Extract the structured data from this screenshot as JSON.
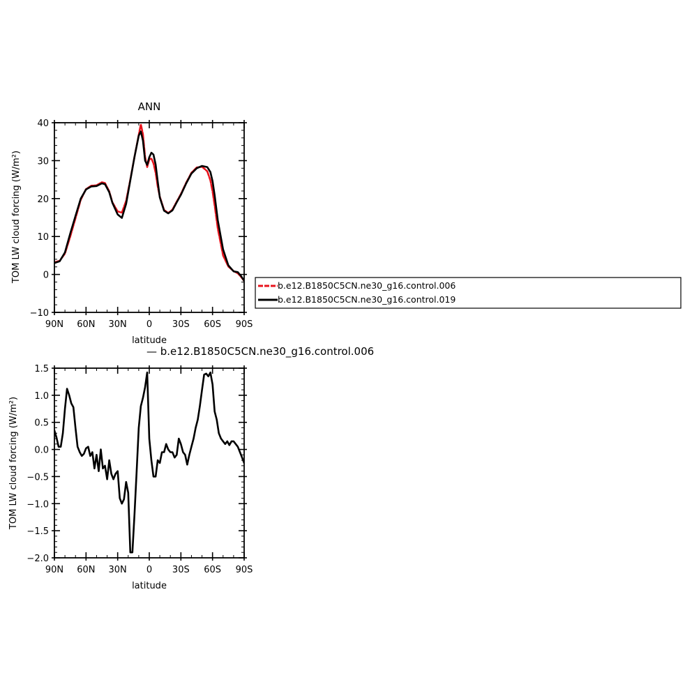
{
  "chart_data": [
    {
      "type": "line",
      "title": "ANN",
      "xlabel": "latitude",
      "ylabel": "TOM LW cloud forcing (W/m²)",
      "xlim": [
        90,
        -90
      ],
      "ylim": [
        -10,
        40
      ],
      "x_ticks": [
        {
          "value": 90,
          "label": "90N"
        },
        {
          "value": 60,
          "label": "60N"
        },
        {
          "value": 30,
          "label": "30N"
        },
        {
          "value": 0,
          "label": "0"
        },
        {
          "value": -30,
          "label": "30S"
        },
        {
          "value": -60,
          "label": "60S"
        },
        {
          "value": -90,
          "label": "90S"
        }
      ],
      "y_ticks": [
        {
          "value": 40,
          "label": "40"
        },
        {
          "value": 30,
          "label": "30"
        },
        {
          "value": 20,
          "label": "20"
        },
        {
          "value": 10,
          "label": "10"
        },
        {
          "value": 0,
          "label": "0"
        },
        {
          "value": -10,
          "label": "−10"
        }
      ],
      "legend_position": "right",
      "series": [
        {
          "name": "b.e12.B1850C5CN.ne30_g16.control.006",
          "color": "#e8141c",
          "style": "dashed",
          "x": [
            90,
            85,
            80,
            75,
            70,
            65,
            60,
            55,
            50,
            45,
            42,
            38,
            35,
            30,
            26,
            22,
            18,
            14,
            10,
            8,
            6,
            4,
            2,
            0,
            -2,
            -4,
            -6,
            -8,
            -10,
            -14,
            -18,
            -22,
            -26,
            -30,
            -35,
            -40,
            -45,
            -50,
            -55,
            -58,
            -60,
            -62,
            -65,
            -70,
            -75,
            -80,
            -84,
            -87,
            -90
          ],
          "y": [
            3.2,
            3.6,
            5.5,
            10.0,
            14.8,
            19.7,
            22.5,
            23.4,
            23.5,
            24.3,
            24.1,
            21.9,
            19.0,
            16.6,
            16.3,
            19.4,
            25.0,
            31.0,
            36.8,
            39.6,
            37.0,
            31.0,
            28.3,
            30.3,
            30.6,
            29.3,
            26.8,
            23.2,
            20.5,
            17.0,
            16.2,
            17.1,
            19.2,
            21.2,
            24.2,
            26.8,
            28.2,
            28.4,
            27.2,
            24.8,
            21.9,
            18.2,
            12.1,
            5.0,
            2.1,
            0.9,
            0.3,
            -0.6,
            -1.7
          ]
        },
        {
          "name": "b.e12.B1850C5CN.ne30_g16.control.019",
          "color": "#000000",
          "style": "solid",
          "x": [
            90,
            85,
            80,
            75,
            70,
            65,
            60,
            55,
            50,
            45,
            42,
            38,
            35,
            30,
            26,
            22,
            18,
            14,
            10,
            8,
            6,
            4,
            2,
            0,
            -2,
            -4,
            -6,
            -8,
            -10,
            -14,
            -18,
            -22,
            -26,
            -30,
            -35,
            -40,
            -45,
            -50,
            -55,
            -58,
            -60,
            -62,
            -65,
            -70,
            -75,
            -80,
            -84,
            -87,
            -90
          ],
          "y": [
            3.0,
            3.5,
            5.8,
            10.8,
            15.4,
            20.0,
            22.4,
            23.2,
            23.3,
            24.0,
            23.8,
            21.7,
            18.9,
            15.8,
            14.9,
            18.6,
            24.8,
            31.0,
            36.6,
            37.7,
            35.3,
            30.0,
            28.9,
            30.9,
            32.1,
            31.6,
            29.0,
            24.5,
            20.3,
            16.8,
            16.1,
            16.9,
            19.0,
            21.0,
            24.0,
            26.6,
            28.0,
            28.6,
            28.3,
            27.0,
            24.6,
            20.9,
            14.3,
            6.6,
            2.4,
            0.8,
            0.6,
            -0.4,
            -1.7
          ]
        }
      ]
    },
    {
      "type": "line",
      "title": "— b.e12.B1850C5CN.ne30_g16.control.006",
      "xlabel": "latitude",
      "ylabel": "TOM LW cloud forcing (W/m²)",
      "xlim": [
        90,
        -90
      ],
      "ylim": [
        -2.0,
        1.5
      ],
      "x_ticks": [
        {
          "value": 90,
          "label": "90N"
        },
        {
          "value": 60,
          "label": "60N"
        },
        {
          "value": 30,
          "label": "30N"
        },
        {
          "value": 0,
          "label": "0"
        },
        {
          "value": -30,
          "label": "30S"
        },
        {
          "value": -60,
          "label": "60S"
        },
        {
          "value": -90,
          "label": "90S"
        }
      ],
      "y_ticks": [
        {
          "value": 1.5,
          "label": "1.5"
        },
        {
          "value": 1.0,
          "label": "1.0"
        },
        {
          "value": 0.5,
          "label": "0.5"
        },
        {
          "value": 0.0,
          "label": "0.0"
        },
        {
          "value": -0.5,
          "label": "−0.5"
        },
        {
          "value": -1.0,
          "label": "−1.0"
        },
        {
          "value": -1.5,
          "label": "−1.5"
        },
        {
          "value": -2.0,
          "label": "−2.0"
        }
      ],
      "series": [
        {
          "color": "#000000",
          "style": "solid",
          "x": [
            90,
            88,
            86,
            84,
            82,
            80,
            78,
            76,
            74,
            72,
            70,
            68,
            66,
            64,
            62,
            60,
            58,
            56,
            54,
            52,
            50,
            48,
            46,
            44,
            42,
            40,
            38,
            36,
            34,
            32,
            30,
            28,
            26,
            24,
            22,
            20,
            18,
            16,
            14,
            12,
            10,
            8,
            6,
            4,
            2,
            0,
            -2,
            -4,
            -6,
            -8,
            -10,
            -12,
            -14,
            -16,
            -18,
            -20,
            -22,
            -24,
            -26,
            -28,
            -30,
            -32,
            -34,
            -36,
            -38,
            -40,
            -42,
            -44,
            -46,
            -48,
            -50,
            -52,
            -54,
            -56,
            -58,
            -60,
            -62,
            -64,
            -66,
            -68,
            -70,
            -72,
            -74,
            -76,
            -78,
            -80,
            -82,
            -84,
            -86,
            -88,
            -90
          ],
          "y": [
            0.35,
            0.22,
            0.05,
            0.05,
            0.3,
            0.75,
            1.12,
            1.0,
            0.85,
            0.78,
            0.4,
            0.05,
            -0.05,
            -0.12,
            -0.08,
            0.02,
            0.05,
            -0.12,
            -0.05,
            -0.35,
            -0.1,
            -0.4,
            0.0,
            -0.35,
            -0.3,
            -0.55,
            -0.2,
            -0.45,
            -0.55,
            -0.45,
            -0.4,
            -0.9,
            -1.0,
            -0.92,
            -0.6,
            -0.8,
            -1.9,
            -1.9,
            -1.2,
            -0.4,
            0.4,
            0.8,
            0.95,
            1.15,
            1.42,
            0.2,
            -0.2,
            -0.5,
            -0.5,
            -0.2,
            -0.25,
            -0.05,
            -0.05,
            0.1,
            0.0,
            -0.05,
            -0.05,
            -0.15,
            -0.1,
            0.2,
            0.1,
            -0.05,
            -0.1,
            -0.28,
            -0.1,
            0.05,
            0.2,
            0.4,
            0.55,
            0.8,
            1.1,
            1.38,
            1.4,
            1.35,
            1.42,
            1.2,
            0.7,
            0.55,
            0.3,
            0.2,
            0.15,
            0.1,
            0.15,
            0.08,
            0.15,
            0.15,
            0.1,
            0.05,
            -0.05,
            -0.15,
            -0.25
          ]
        }
      ]
    }
  ]
}
